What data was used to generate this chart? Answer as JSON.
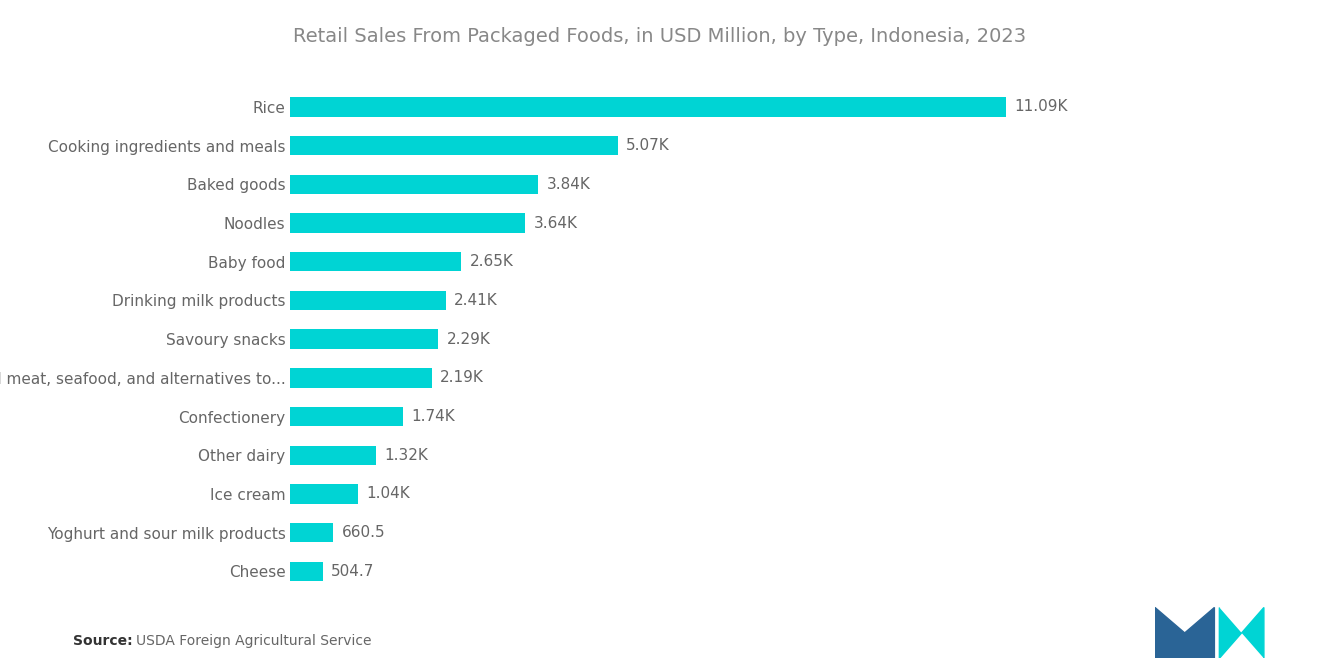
{
  "title": "Retail Sales From Packaged Foods, in USD Million, by Type, Indonesia, 2023",
  "categories": [
    "Rice",
    "Cooking ingredients and meals",
    "Baked goods",
    "Noodles",
    "Baby food",
    "Drinking milk products",
    "Savoury snacks",
    "Processed meat, seafood, and alternatives to...",
    "Confectionery",
    "Other dairy",
    "Ice cream",
    "Yoghurt and sour milk products",
    "Cheese"
  ],
  "values": [
    11090,
    5070,
    3840,
    3640,
    2650,
    2410,
    2290,
    2190,
    1740,
    1320,
    1040,
    660.5,
    504.7
  ],
  "labels": [
    "11.09K",
    "5.07K",
    "3.84K",
    "3.64K",
    "2.65K",
    "2.41K",
    "2.29K",
    "2.19K",
    "1.74K",
    "1.32K",
    "1.04K",
    "660.5",
    "504.7"
  ],
  "bar_color": "#00D4D4",
  "background_color": "#ffffff",
  "title_color": "#888888",
  "label_color": "#666666",
  "source_bold": "Source:",
  "source_normal": "  USDA Foreign Agricultural Service",
  "title_fontsize": 14,
  "label_fontsize": 11,
  "value_fontsize": 11,
  "bar_height": 0.5,
  "xlim_max": 13500,
  "logo_m_color": "#2a6496",
  "logo_n_color": "#00D4D4"
}
